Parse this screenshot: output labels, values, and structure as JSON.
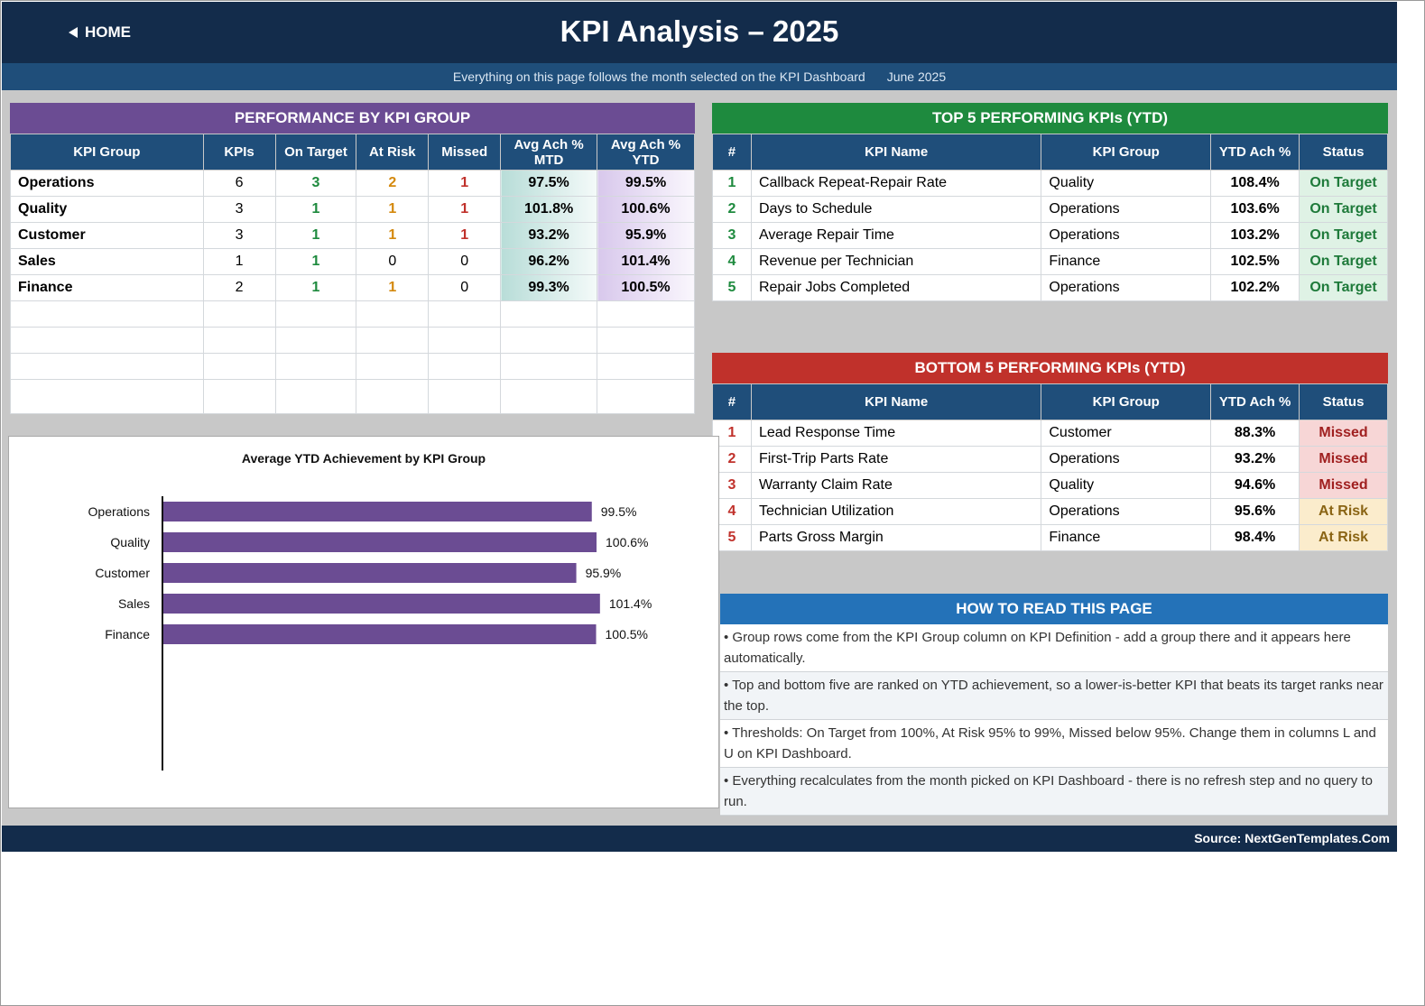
{
  "header": {
    "home_label": "HOME",
    "title": "KPI Analysis   –   2025"
  },
  "subbar": {
    "note": "Everything on this page follows the month selected on the KPI Dashboard",
    "month": "June 2025"
  },
  "perf": {
    "title": "PERFORMANCE BY KPI GROUP",
    "columns": [
      "KPI Group",
      "KPIs",
      "On Target",
      "At Risk",
      "Missed",
      "Avg Ach % MTD",
      "Avg Ach % YTD"
    ],
    "rows": [
      {
        "group": "Operations",
        "kpis": "6",
        "on": "3",
        "risk": "2",
        "missed": "1",
        "mtd": "97.5%",
        "ytd": "99.5%"
      },
      {
        "group": "Quality",
        "kpis": "3",
        "on": "1",
        "risk": "1",
        "missed": "1",
        "mtd": "101.8%",
        "ytd": "100.6%"
      },
      {
        "group": "Customer",
        "kpis": "3",
        "on": "1",
        "risk": "1",
        "missed": "1",
        "mtd": "93.2%",
        "ytd": "95.9%"
      },
      {
        "group": "Sales",
        "kpis": "1",
        "on": "1",
        "risk": "0",
        "missed": "0",
        "mtd": "96.2%",
        "ytd": "101.4%"
      },
      {
        "group": "Finance",
        "kpis": "2",
        "on": "1",
        "risk": "1",
        "missed": "0",
        "mtd": "99.3%",
        "ytd": "100.5%"
      }
    ]
  },
  "top5": {
    "title": "TOP 5 PERFORMING KPIs  (YTD)",
    "columns": [
      "#",
      "KPI Name",
      "KPI Group",
      "YTD Ach %",
      "Status"
    ],
    "rows": [
      {
        "n": "1",
        "name": "Callback Repeat-Repair Rate",
        "group": "Quality",
        "ach": "108.4%",
        "status": "On Target"
      },
      {
        "n": "2",
        "name": "Days to Schedule",
        "group": "Operations",
        "ach": "103.6%",
        "status": "On Target"
      },
      {
        "n": "3",
        "name": "Average Repair Time",
        "group": "Operations",
        "ach": "103.2%",
        "status": "On Target"
      },
      {
        "n": "4",
        "name": "Revenue per Technician",
        "group": "Finance",
        "ach": "102.5%",
        "status": "On Target"
      },
      {
        "n": "5",
        "name": "Repair Jobs Completed",
        "group": "Operations",
        "ach": "102.2%",
        "status": "On Target"
      }
    ]
  },
  "bottom5": {
    "title": "BOTTOM 5 PERFORMING KPIs  (YTD)",
    "columns": [
      "#",
      "KPI Name",
      "KPI Group",
      "YTD Ach %",
      "Status"
    ],
    "rows": [
      {
        "n": "1",
        "name": "Lead Response Time",
        "group": "Customer",
        "ach": "88.3%",
        "status": "Missed"
      },
      {
        "n": "2",
        "name": "First-Trip Parts Rate",
        "group": "Operations",
        "ach": "93.2%",
        "status": "Missed"
      },
      {
        "n": "3",
        "name": "Warranty Claim Rate",
        "group": "Quality",
        "ach": "94.6%",
        "status": "Missed"
      },
      {
        "n": "4",
        "name": "Technician Utilization",
        "group": "Operations",
        "ach": "95.6%",
        "status": "At Risk"
      },
      {
        "n": "5",
        "name": "Parts Gross Margin",
        "group": "Finance",
        "ach": "98.4%",
        "status": "At Risk"
      }
    ]
  },
  "howto": {
    "title": "HOW TO READ THIS PAGE",
    "items": [
      "•  Group rows come from the KPI Group column on KPI Definition - add a group there and it appears here automatically.",
      "•  Top and bottom five are ranked on YTD achievement, so a lower-is-better KPI that beats its target ranks near the top.",
      "•  Thresholds: On Target from 100%, At Risk 95% to 99%, Missed below 95%. Change them in columns L and U on KPI Dashboard.",
      "•  Everything recalculates from the month picked on KPI Dashboard - there is no refresh step and no query to run."
    ]
  },
  "footer": {
    "source": "Source: NextGenTemplates.Com"
  },
  "colors": {
    "navy": "#132c4b",
    "purple": "#6b4c93",
    "green": "#1e8a3e",
    "red": "#c0312b",
    "blue": "#2472b8"
  },
  "chart_data": {
    "type": "bar",
    "orientation": "horizontal",
    "title": "Average YTD Achievement by KPI Group",
    "categories": [
      "Operations",
      "Quality",
      "Customer",
      "Sales",
      "Finance"
    ],
    "values": [
      99.5,
      100.6,
      95.9,
      101.4,
      100.5
    ],
    "labels": [
      "99.5%",
      "100.6%",
      "95.9%",
      "101.4%",
      "100.5%"
    ],
    "color": "#6b4c93",
    "xlabel": "",
    "ylabel": ""
  }
}
